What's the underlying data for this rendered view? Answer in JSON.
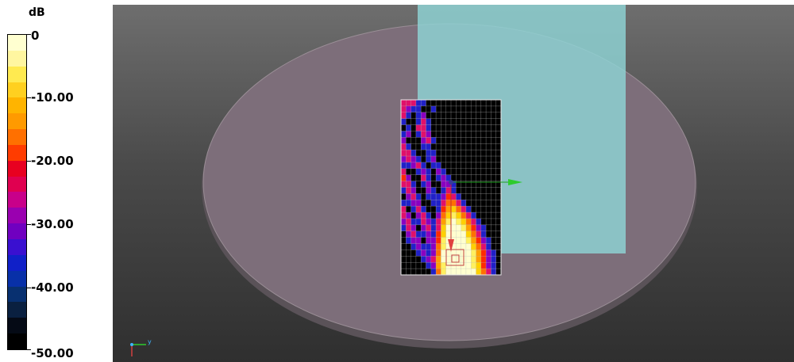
{
  "legend": {
    "unit": "dB",
    "bands": [
      "#ffffd0",
      "#fff6a0",
      "#ffea50",
      "#ffd020",
      "#ffb400",
      "#ff9a00",
      "#ff7000",
      "#ff3c00",
      "#e80020",
      "#e00050",
      "#c8008a",
      "#9a00b0",
      "#7000c0",
      "#3a10d0",
      "#1020c8",
      "#0830a8",
      "#083070",
      "#0a2040",
      "#050a15",
      "#000000"
    ],
    "labels": [
      "0",
      "-10.00",
      "-20.00",
      "-30.00",
      "-40.00",
      "-50.00"
    ]
  },
  "viewport": {
    "disc_color": "#7d6e7a",
    "block_color": "#8fd4d6",
    "axis_triad_label": "y",
    "heatmap_grid": [
      [
        3,
        3,
        3,
        1,
        1,
        0,
        0,
        0,
        0,
        0,
        0,
        0,
        0,
        0,
        0,
        0,
        0,
        0,
        0,
        0
      ],
      [
        3,
        2,
        1,
        1,
        0,
        0,
        1,
        0,
        0,
        0,
        0,
        0,
        0,
        0,
        0,
        0,
        0,
        0,
        0,
        0
      ],
      [
        3,
        1,
        0,
        1,
        2,
        0,
        0,
        0,
        0,
        0,
        0,
        0,
        0,
        0,
        0,
        0,
        0,
        0,
        0,
        0
      ],
      [
        1,
        0,
        0,
        1,
        3,
        1,
        0,
        0,
        0,
        0,
        0,
        0,
        0,
        0,
        0,
        0,
        0,
        0,
        0,
        0
      ],
      [
        0,
        1,
        0,
        3,
        3,
        1,
        0,
        0,
        0,
        0,
        0,
        0,
        0,
        0,
        0,
        0,
        0,
        0,
        0,
        0
      ],
      [
        1,
        2,
        0,
        1,
        3,
        2,
        0,
        0,
        0,
        0,
        0,
        0,
        0,
        0,
        0,
        0,
        0,
        0,
        0,
        0
      ],
      [
        2,
        0,
        0,
        0,
        2,
        3,
        1,
        0,
        0,
        0,
        0,
        0,
        0,
        0,
        0,
        0,
        0,
        0,
        0,
        0
      ],
      [
        3,
        1,
        0,
        0,
        1,
        1,
        0,
        0,
        0,
        0,
        0,
        0,
        0,
        0,
        0,
        0,
        0,
        0,
        0,
        0
      ],
      [
        3,
        3,
        1,
        0,
        0,
        1,
        1,
        0,
        0,
        0,
        0,
        0,
        0,
        0,
        0,
        0,
        0,
        0,
        0,
        0
      ],
      [
        2,
        3,
        2,
        1,
        0,
        1,
        2,
        0,
        0,
        0,
        0,
        0,
        0,
        0,
        0,
        0,
        0,
        0,
        0,
        0
      ],
      [
        1,
        1,
        2,
        3,
        1,
        0,
        1,
        1,
        0,
        0,
        0,
        0,
        0,
        0,
        0,
        0,
        0,
        0,
        0,
        0
      ],
      [
        3,
        0,
        0,
        1,
        2,
        1,
        0,
        2,
        1,
        0,
        0,
        0,
        0,
        0,
        0,
        0,
        0,
        0,
        0,
        0
      ],
      [
        4,
        2,
        0,
        0,
        3,
        1,
        0,
        1,
        2,
        1,
        0,
        0,
        0,
        0,
        0,
        0,
        0,
        0,
        0,
        0
      ],
      [
        3,
        3,
        1,
        0,
        1,
        2,
        0,
        0,
        2,
        2,
        1,
        0,
        0,
        0,
        0,
        0,
        0,
        0,
        0,
        0
      ],
      [
        1,
        3,
        2,
        0,
        0,
        2,
        1,
        0,
        1,
        3,
        1,
        0,
        0,
        0,
        0,
        0,
        0,
        0,
        0,
        0
      ],
      [
        0,
        2,
        3,
        1,
        0,
        1,
        1,
        1,
        2,
        4,
        3,
        1,
        0,
        0,
        0,
        0,
        0,
        0,
        0,
        0
      ],
      [
        1,
        1,
        2,
        2,
        0,
        0,
        1,
        1,
        3,
        5,
        5,
        3,
        1,
        0,
        0,
        0,
        0,
        0,
        0,
        0
      ],
      [
        3,
        0,
        1,
        3,
        1,
        0,
        0,
        1,
        4,
        6,
        7,
        5,
        3,
        1,
        0,
        0,
        0,
        0,
        0,
        0
      ],
      [
        3,
        2,
        0,
        2,
        3,
        1,
        0,
        2,
        5,
        7,
        8,
        7,
        5,
        3,
        1,
        0,
        0,
        0,
        0,
        0
      ],
      [
        2,
        3,
        1,
        1,
        3,
        2,
        1,
        3,
        6,
        8,
        9,
        8,
        7,
        5,
        3,
        1,
        0,
        0,
        0,
        0
      ],
      [
        1,
        3,
        2,
        0,
        2,
        3,
        1,
        3,
        7,
        9,
        9,
        9,
        8,
        6,
        4,
        2,
        1,
        0,
        0,
        0
      ],
      [
        0,
        2,
        3,
        1,
        1,
        2,
        1,
        4,
        7,
        9,
        9,
        9,
        9,
        7,
        5,
        3,
        1,
        0,
        0,
        0
      ],
      [
        0,
        1,
        2,
        2,
        0,
        2,
        2,
        4,
        8,
        9,
        9,
        9,
        9,
        8,
        6,
        4,
        2,
        1,
        0,
        0
      ],
      [
        0,
        0,
        1,
        2,
        1,
        1,
        2,
        5,
        8,
        9,
        9,
        9,
        9,
        9,
        7,
        5,
        3,
        1,
        0,
        0
      ],
      [
        0,
        0,
        0,
        1,
        2,
        1,
        2,
        5,
        9,
        9,
        9,
        9,
        9,
        9,
        8,
        6,
        4,
        2,
        1,
        0
      ],
      [
        0,
        0,
        0,
        0,
        1,
        2,
        3,
        6,
        9,
        9,
        9,
        9,
        9,
        9,
        8,
        6,
        4,
        2,
        1,
        0
      ],
      [
        0,
        0,
        0,
        0,
        0,
        1,
        2,
        6,
        8,
        9,
        9,
        9,
        9,
        9,
        8,
        7,
        4,
        2,
        1,
        0
      ],
      [
        0,
        0,
        0,
        0,
        0,
        0,
        1,
        5,
        8,
        9,
        9,
        9,
        9,
        9,
        9,
        7,
        5,
        3,
        1,
        0
      ]
    ],
    "heatmap_palette": [
      "#000000",
      "#2020c8",
      "#8a00c0",
      "#e0106a",
      "#ff2a00",
      "#ff7000",
      "#ffa000",
      "#ffd000",
      "#fff060",
      "#ffffd0"
    ]
  }
}
